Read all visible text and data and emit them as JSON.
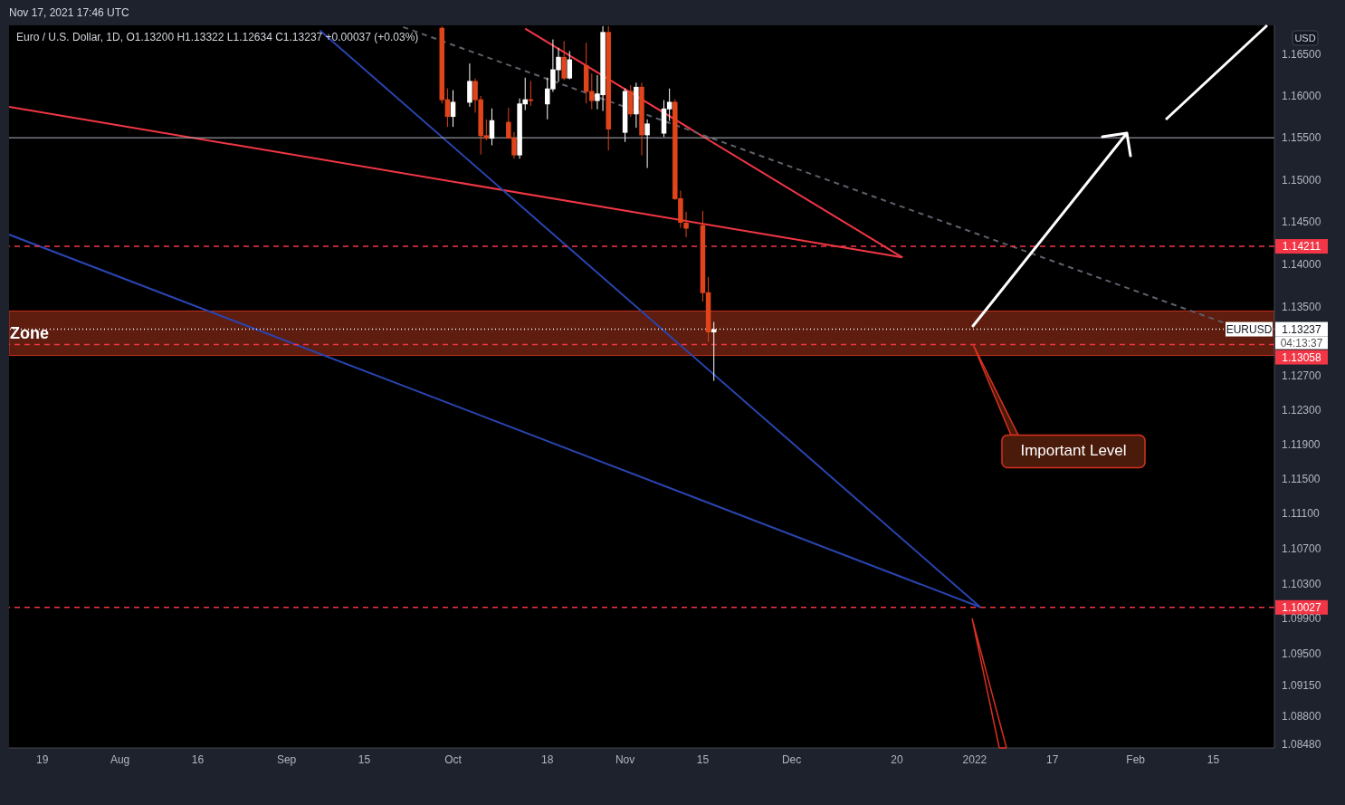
{
  "chart_data": {
    "type": "candlestick",
    "title": "Euro / U.S. Dollar, 1D, O1.13200 H1.13322 L1.12634 C1.13237 +0.00037 (+0.03%)",
    "x": [
      "2021-09-29",
      "2021-09-30",
      "2021-10-01",
      "2021-10-04",
      "2021-10-05",
      "2021-10-06",
      "2021-10-07",
      "2021-10-08",
      "2021-10-11",
      "2021-10-12",
      "2021-10-13",
      "2021-10-14",
      "2021-10-15",
      "2021-10-18",
      "2021-10-19",
      "2021-10-20",
      "2021-10-21",
      "2021-10-22",
      "2021-10-25",
      "2021-10-26",
      "2021-10-27",
      "2021-10-28",
      "2021-10-29",
      "2021-11-01",
      "2021-11-02",
      "2021-11-03",
      "2021-11-04",
      "2021-11-05",
      "2021-11-08",
      "2021-11-09",
      "2021-11-10",
      "2021-11-11",
      "2021-11-12",
      "2021-11-15",
      "2021-11-16",
      "2021-11-17"
    ],
    "ohlc": [
      [
        1.1682,
        1.1684,
        1.1591,
        1.1595
      ],
      [
        1.1596,
        1.1609,
        1.1563,
        1.1575
      ],
      [
        1.1575,
        1.1607,
        1.1563,
        1.1593
      ],
      [
        1.1592,
        1.1639,
        1.1587,
        1.1618
      ],
      [
        1.1618,
        1.1621,
        1.158,
        1.1595
      ],
      [
        1.1596,
        1.16,
        1.153,
        1.1552
      ],
      [
        1.1553,
        1.1572,
        1.1547,
        1.1549
      ],
      [
        1.1549,
        1.1585,
        1.1541,
        1.1571
      ],
      [
        1.1569,
        1.1586,
        1.1549,
        1.1549
      ],
      [
        1.155,
        1.1557,
        1.1525,
        1.1529
      ],
      [
        1.1529,
        1.1597,
        1.1525,
        1.1591
      ],
      [
        1.159,
        1.1622,
        1.1583,
        1.1596
      ],
      [
        1.1596,
        1.1618,
        1.1588,
        1.1594
      ],
      [
        1.159,
        1.1622,
        1.1572,
        1.1609
      ],
      [
        1.1608,
        1.1668,
        1.1605,
        1.1632
      ],
      [
        1.1631,
        1.1658,
        1.1617,
        1.1647
      ],
      [
        1.1647,
        1.1666,
        1.1619,
        1.1621
      ],
      [
        1.1621,
        1.1654,
        1.162,
        1.1644
      ],
      [
        1.1637,
        1.1664,
        1.1591,
        1.1605
      ],
      [
        1.1606,
        1.1627,
        1.1584,
        1.1594
      ],
      [
        1.1594,
        1.1625,
        1.1584,
        1.1603
      ],
      [
        1.1601,
        1.1684,
        1.1582,
        1.1677
      ],
      [
        1.1677,
        1.1684,
        1.1535,
        1.156
      ],
      [
        1.1556,
        1.1609,
        1.1545,
        1.1606
      ],
      [
        1.1606,
        1.1613,
        1.1575,
        1.1578
      ],
      [
        1.1578,
        1.1616,
        1.1562,
        1.1611
      ],
      [
        1.1611,
        1.1616,
        1.1529,
        1.1553
      ],
      [
        1.1553,
        1.1572,
        1.1514,
        1.1567
      ],
      [
        1.1555,
        1.1595,
        1.1551,
        1.1585
      ],
      [
        1.1584,
        1.1609,
        1.157,
        1.1593
      ],
      [
        1.1593,
        1.1596,
        1.1476,
        1.1477
      ],
      [
        1.1478,
        1.1487,
        1.1443,
        1.1449
      ],
      [
        1.1449,
        1.1462,
        1.1432,
        1.1442
      ],
      [
        1.1446,
        1.1463,
        1.1356,
        1.1366
      ],
      [
        1.1367,
        1.1385,
        1.1309,
        1.132
      ],
      [
        1.132,
        1.13322,
        1.12634,
        1.13237
      ]
    ],
    "colors": [
      "#e0441a",
      "#e0441a",
      "#ffffff",
      "#ffffff",
      "#e0441a",
      "#e0441a",
      "#e0441a",
      "#ffffff",
      "#e0441a",
      "#e0441a",
      "#ffffff",
      "#ffffff",
      "#e0441a",
      "#ffffff",
      "#ffffff",
      "#ffffff",
      "#e0441a",
      "#ffffff",
      "#e0441a",
      "#e0441a",
      "#ffffff",
      "#ffffff",
      "#e0441a",
      "#ffffff",
      "#e0441a",
      "#ffffff",
      "#e0441a",
      "#ffffff",
      "#ffffff",
      "#ffffff",
      "#e0441a",
      "#e0441a",
      "#e0441a",
      "#e0441a",
      "#e0441a",
      "#ffffff"
    ],
    "series": [
      {
        "type": "line",
        "color": "#f23645",
        "x": [
          "2021-07-13",
          "2021-12-21"
        ],
        "values": [
          1.1587,
          1.1408
        ]
      },
      {
        "type": "line",
        "color": "#f23645",
        "x": [
          "2021-10-14",
          "2021-12-21"
        ],
        "values": [
          1.1681,
          1.1408
        ]
      },
      {
        "type": "line",
        "color": "#2a44b0",
        "x": [
          "2021-09-07",
          "2022-01-04"
        ],
        "values": [
          1.1679,
          1.1003
        ]
      },
      {
        "type": "line",
        "color": "#2a44b0",
        "x": [
          "2021-07-13",
          "2022-01-04"
        ],
        "values": [
          1.1435,
          1.1003
        ]
      },
      {
        "type": "line",
        "color": "#5d606b",
        "line_style": "dashed",
        "x": [
          "2021-09-22",
          "2022-02-17"
        ],
        "values": [
          1.1683,
          1.1331
        ]
      }
    ],
    "xlim": [
      "2021-07-13",
      "2022-02-26"
    ],
    "xticks": [
      {
        "value": "2021-07-19",
        "label": "19"
      },
      {
        "value": "2021-08-02",
        "label": "Aug"
      },
      {
        "value": "2021-08-16",
        "label": "16"
      },
      {
        "value": "2021-09-01",
        "label": "Sep"
      },
      {
        "value": "2021-09-15",
        "label": "15"
      },
      {
        "value": "2021-10-01",
        "label": "Oct"
      },
      {
        "value": "2021-10-18",
        "label": "18"
      },
      {
        "value": "2021-11-01",
        "label": "Nov"
      },
      {
        "value": "2021-11-15",
        "label": "15"
      },
      {
        "value": "2021-12-01",
        "label": "Dec"
      },
      {
        "value": "2021-12-20",
        "label": "20"
      },
      {
        "value": "2022-01-03",
        "label": "2022"
      },
      {
        "value": "2022-01-17",
        "label": "17"
      },
      {
        "value": "2022-02-01",
        "label": "Feb"
      },
      {
        "value": "2022-02-15",
        "label": "15"
      }
    ],
    "ylim": [
      1.0844,
      1.1685
    ],
    "yticks": [
      {
        "value": 1.165,
        "label": "1.16500"
      },
      {
        "value": 1.16,
        "label": "1.16000"
      },
      {
        "value": 1.155,
        "label": "1.15500"
      },
      {
        "value": 1.15,
        "label": "1.15000"
      },
      {
        "value": 1.145,
        "label": "1.14500"
      },
      {
        "value": 1.14,
        "label": "1.14000"
      },
      {
        "value": 1.135,
        "label": "1.13500"
      },
      {
        "value": 1.127,
        "label": "1.12700"
      },
      {
        "value": 1.123,
        "label": "1.12300"
      },
      {
        "value": 1.119,
        "label": "1.11900"
      },
      {
        "value": 1.115,
        "label": "1.11500"
      },
      {
        "value": 1.111,
        "label": "1.11100"
      },
      {
        "value": 1.107,
        "label": "1.10700"
      },
      {
        "value": 1.103,
        "label": "1.10300"
      },
      {
        "value": 1.099,
        "label": "1.09900"
      },
      {
        "value": 1.095,
        "label": "1.09500"
      },
      {
        "value": 1.0915,
        "label": "1.09150"
      },
      {
        "value": 1.088,
        "label": "1.08800"
      },
      {
        "value": 1.0848,
        "label": "1.08480"
      }
    ],
    "log": "y",
    "ref_lines": [
      {
        "axis": "y",
        "value": 1.155,
        "color": "#b2b5be",
        "line_style": "solid"
      },
      {
        "axis": "y",
        "value": 1.14211,
        "label": "1.14211",
        "color": "#f23645",
        "line_style": "dashed"
      },
      {
        "axis": "y",
        "value": 1.13237,
        "label": "1.13237",
        "color": "#ffffff",
        "line_style": "dotted"
      },
      {
        "axis": "y",
        "value": 1.13058,
        "label": "1.13058",
        "color": "#f23645",
        "line_style": "dashed"
      },
      {
        "axis": "y",
        "value": 1.10027,
        "label": "1.10027",
        "color": "#f23645",
        "line_style": "dashed"
      }
    ],
    "bands": [
      {
        "axis": "y",
        "from": 1.1293,
        "to": 1.1345,
        "label": "Zone",
        "color": "#6e2210"
      }
    ],
    "annotations": [
      "Nov 17, 2021 17:46 UTC",
      "USD",
      "EURUSD",
      "04:13:37",
      "Important Level"
    ]
  }
}
